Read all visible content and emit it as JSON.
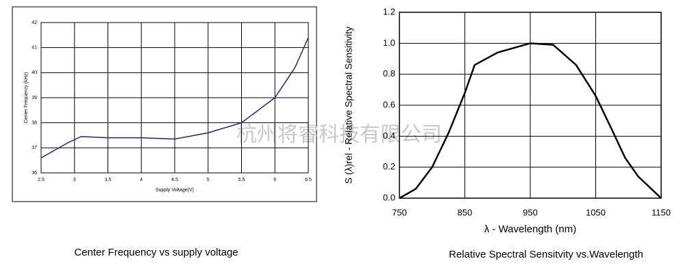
{
  "chart_data": [
    {
      "type": "line",
      "y_label": "Center Frequency (kHz)",
      "x_label": "Supply Voltage(V)",
      "caption": "Center Frequency vs supply voltage",
      "x": [
        2.5,
        2.9,
        3.1,
        3.5,
        4,
        4.5,
        5,
        5.5,
        6,
        6.3,
        6.5
      ],
      "series": [
        {
          "color": "#1a237e",
          "values": [
            36.6,
            37.2,
            37.45,
            37.4,
            37.4,
            37.35,
            37.6,
            38.0,
            39.0,
            40.2,
            41.4
          ]
        }
      ],
      "xlim": [
        2.5,
        6.5
      ],
      "xticks": [
        2.5,
        3,
        3.5,
        4,
        4.5,
        5,
        5.5,
        6,
        6.5
      ],
      "ylim": [
        36,
        42
      ],
      "yticks": [
        36,
        37,
        38,
        39,
        40,
        41,
        42
      ],
      "grid": true
    },
    {
      "type": "line",
      "y_label": "S (λ)rel - Relative Spectral Sensitivity",
      "x_label": "λ - Wavelength (nm)",
      "caption": "Relative Spectral Sensitvity vs.Wavelength",
      "x": [
        750,
        775,
        800,
        825,
        850,
        865,
        900,
        950,
        985,
        1020,
        1050,
        1075,
        1095,
        1115,
        1140,
        1150
      ],
      "series": [
        {
          "color": "#000000",
          "values": [
            0,
            0.06,
            0.2,
            0.42,
            0.68,
            0.86,
            0.94,
            1.0,
            0.99,
            0.86,
            0.66,
            0.44,
            0.26,
            0.14,
            0.04,
            0
          ]
        }
      ],
      "xlim": [
        750,
        1150
      ],
      "xticks": [
        750,
        850,
        950,
        1050,
        1150
      ],
      "ylim": [
        0,
        1.2
      ],
      "yticks": [
        {
          "value": 0,
          "label": "0.0"
        },
        0.2,
        0.4,
        0.6,
        0.8,
        {
          "value": 1,
          "label": "1.0"
        },
        1.2
      ],
      "grid": true
    }
  ],
  "watermark": "杭州将睿科技有限公司"
}
